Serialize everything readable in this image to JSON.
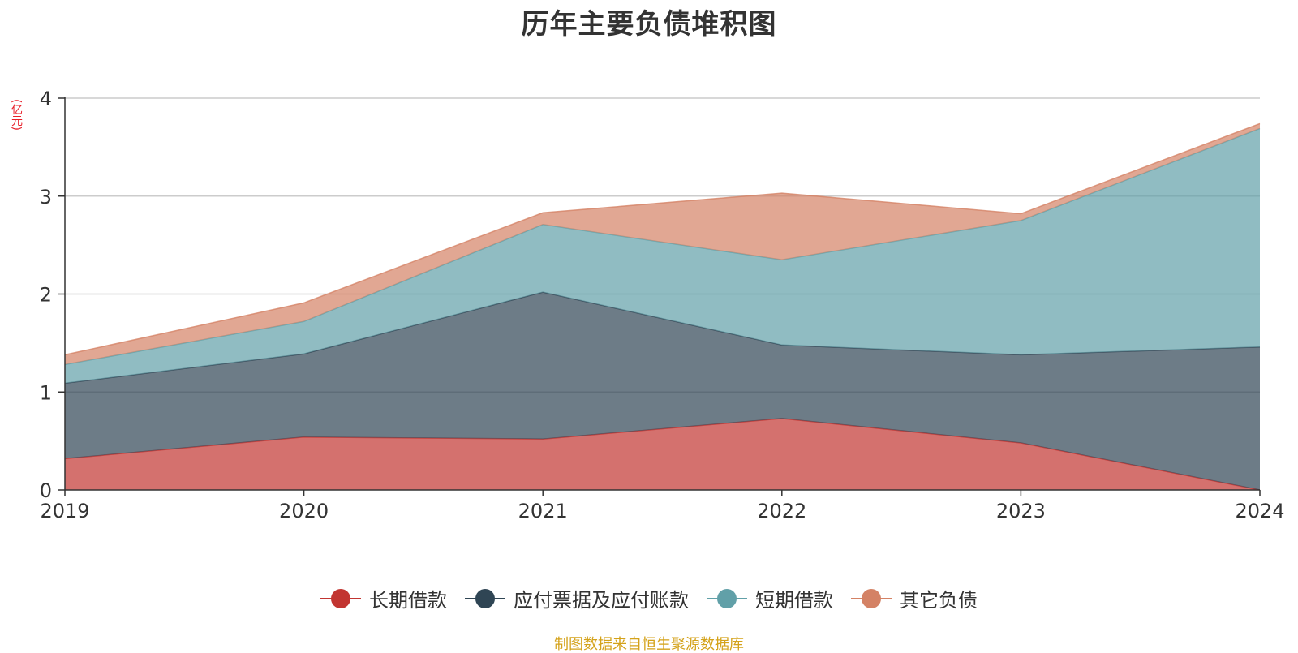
{
  "chart_data": {
    "type": "area",
    "stacked": true,
    "title": "历年主要负债堆积图",
    "y_unit": "(亿元)",
    "x": [
      "2019",
      "2020",
      "2021",
      "2022",
      "2023",
      "2024"
    ],
    "ylim": [
      0,
      4
    ],
    "y_ticks": [
      "0",
      "1",
      "2",
      "3",
      "4"
    ],
    "grid": true,
    "legend_position": "bottom",
    "series": [
      {
        "name": "长期借款",
        "color": "#c23531",
        "values": [
          0.32,
          0.54,
          0.52,
          0.73,
          0.48,
          0.0
        ]
      },
      {
        "name": "应付票据及应付账款",
        "color": "#2f4554",
        "values": [
          0.77,
          0.85,
          1.5,
          0.75,
          0.9,
          1.46
        ]
      },
      {
        "name": "短期借款",
        "color": "#61a0a8",
        "values": [
          0.19,
          0.33,
          0.69,
          0.87,
          1.37,
          2.23
        ]
      },
      {
        "name": "其它负债",
        "color": "#d48265",
        "values": [
          0.1,
          0.19,
          0.12,
          0.68,
          0.07,
          0.05
        ]
      }
    ]
  },
  "source_note": "制图数据来自恒生聚源数据库"
}
